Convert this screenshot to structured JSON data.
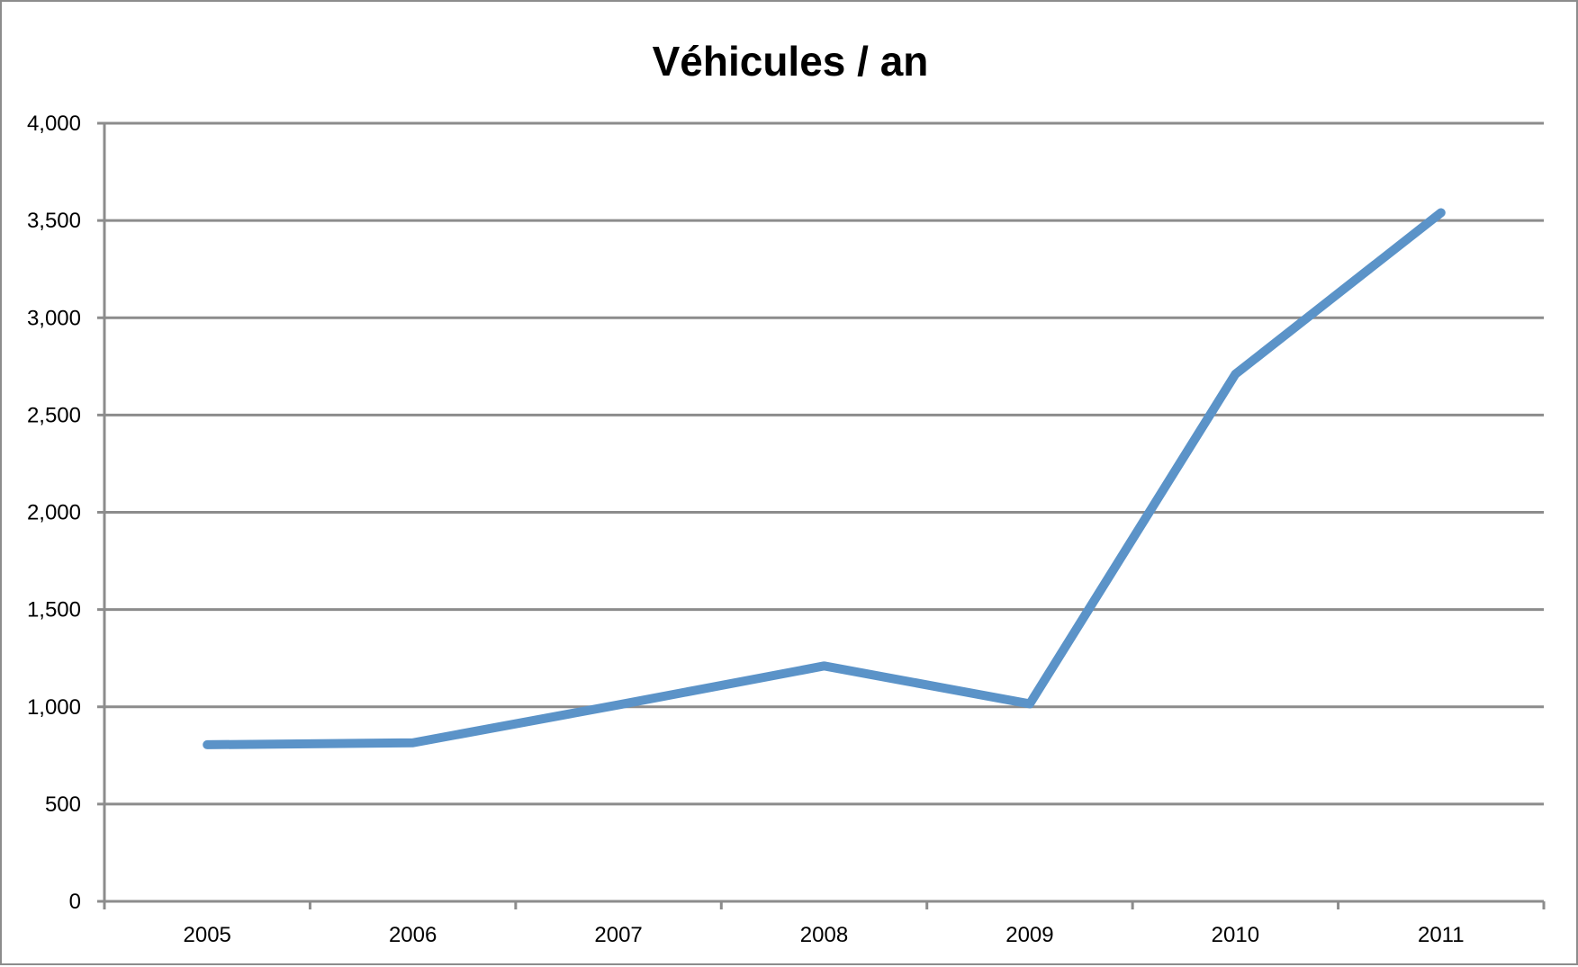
{
  "chart_data": {
    "type": "line",
    "title": "Véhicules / an",
    "xlabel": "",
    "ylabel": "",
    "categories": [
      "2005",
      "2006",
      "2007",
      "2008",
      "2009",
      "2010",
      "2011"
    ],
    "series": [
      {
        "values": [
          805,
          815,
          1010,
          1210,
          1015,
          2710,
          3540
        ],
        "color": "#5b93c8"
      }
    ],
    "ylim": [
      0,
      4000
    ],
    "yticks": [
      "0",
      "500",
      "1,000",
      "1,500",
      "2,000",
      "2,500",
      "3,000",
      "3,500",
      "4,000"
    ],
    "grid": true,
    "legend": "none"
  }
}
